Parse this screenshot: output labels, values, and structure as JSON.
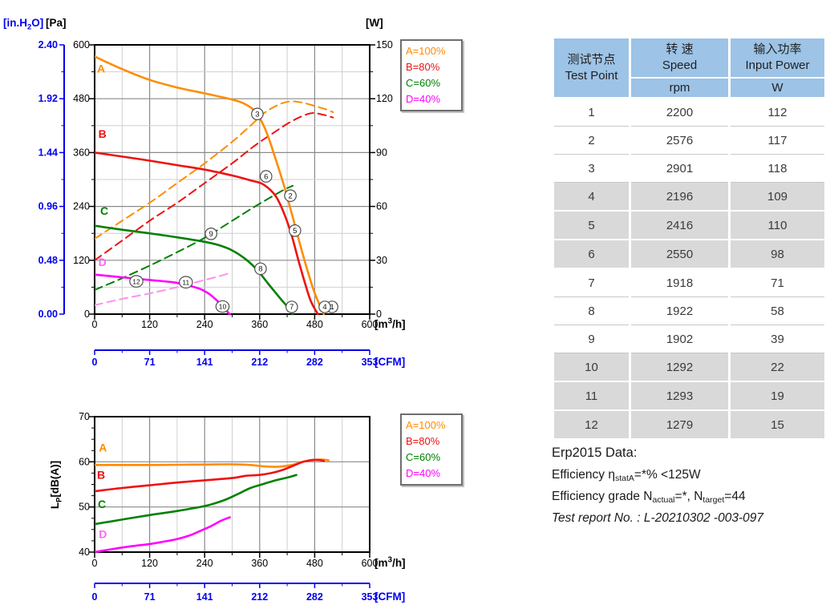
{
  "legend": {
    "items": [
      {
        "label": "A=100%",
        "color": "#FF8C00"
      },
      {
        "label": "B=80%",
        "color": "#EE1111"
      },
      {
        "label": "C=60%",
        "color": "#008000"
      },
      {
        "label": "D=40%",
        "color": "#FF00FF"
      }
    ]
  },
  "chart_data": [
    {
      "id": "pressure-power-chart",
      "type": "line",
      "x_axis": {
        "unit_parts": [
          {
            "t": "[m"
          },
          {
            "t": "3",
            "sup": true
          },
          {
            "t": "/h]"
          }
        ],
        "range": [
          0,
          600
        ],
        "major_ticks": [
          0,
          120,
          240,
          360,
          480,
          600
        ],
        "minor_step": 60
      },
      "x_axis_secondary": {
        "unit_label": "[CFM]",
        "major_ticks": [
          "0",
          "71",
          "141",
          "212",
          "282",
          "353"
        ],
        "color": "#0000EE"
      },
      "y_axis_left": {
        "unit_label": "[Pa]",
        "range": [
          0,
          600
        ],
        "major_ticks": [
          0,
          120,
          240,
          360,
          480,
          600
        ],
        "minor_step": 60
      },
      "y_axis_left_secondary": {
        "unit_parts": [
          {
            "t": "[in.H"
          },
          {
            "t": "2",
            "sub": true
          },
          {
            "t": "O]"
          }
        ],
        "major_tick_labels": [
          "0.00",
          "0.48",
          "0.96",
          "1.44",
          "1.92",
          "2.40"
        ],
        "color": "#0000EE"
      },
      "y_axis_right": {
        "unit_label": "[W]",
        "range": [
          0,
          150
        ],
        "major_ticks": [
          0,
          30,
          60,
          90,
          120,
          150
        ],
        "minor_step": 15
      },
      "series": [
        {
          "name": "A-100-pressure",
          "axis": "left",
          "style": "solid",
          "color": "#FF8C00",
          "points": [
            [
              0,
              574
            ],
            [
              60,
              546
            ],
            [
              120,
              522
            ],
            [
              180,
              505
            ],
            [
              240,
              492
            ],
            [
              300,
              478
            ],
            [
              330,
              467
            ],
            [
              354,
              447
            ],
            [
              375,
              405
            ],
            [
              395,
              345
            ],
            [
              415,
              280
            ],
            [
              435,
              205
            ],
            [
              455,
              130
            ],
            [
              475,
              62
            ],
            [
              490,
              22
            ],
            [
              500,
              0
            ]
          ]
        },
        {
          "name": "B-80-pressure",
          "axis": "left",
          "style": "solid",
          "color": "#EE1111",
          "points": [
            [
              0,
              360
            ],
            [
              60,
              351
            ],
            [
              120,
              342
            ],
            [
              180,
              332
            ],
            [
              240,
              322
            ],
            [
              300,
              309
            ],
            [
              340,
              298
            ],
            [
              368,
              289
            ],
            [
              395,
              263
            ],
            [
              415,
              220
            ],
            [
              430,
              175
            ],
            [
              445,
              118
            ],
            [
              460,
              65
            ],
            [
              472,
              28
            ],
            [
              487,
              0
            ]
          ]
        },
        {
          "name": "C-60-pressure",
          "axis": "left",
          "style": "solid",
          "color": "#008000",
          "points": [
            [
              0,
              197
            ],
            [
              60,
              188
            ],
            [
              120,
              180
            ],
            [
              180,
              171
            ],
            [
              240,
              161
            ],
            [
              270,
              154
            ],
            [
              300,
              142
            ],
            [
              330,
              122
            ],
            [
              355,
              98
            ],
            [
              380,
              66
            ],
            [
              405,
              35
            ],
            [
              420,
              17
            ],
            [
              432,
              0
            ]
          ]
        },
        {
          "name": "D-40-pressure",
          "axis": "left",
          "style": "solid",
          "color": "#FF00FF",
          "points": [
            [
              0,
              88
            ],
            [
              60,
              82
            ],
            [
              120,
              76
            ],
            [
              170,
              71
            ],
            [
              200,
              65
            ],
            [
              230,
              56
            ],
            [
              250,
              45
            ],
            [
              265,
              32
            ],
            [
              280,
              16
            ],
            [
              290,
              5
            ],
            [
              295,
              0
            ]
          ]
        },
        {
          "name": "A-100-power",
          "axis": "right",
          "style": "dashed",
          "color": "#FF8C00",
          "points": [
            [
              0,
              42
            ],
            [
              60,
              52
            ],
            [
              120,
              62
            ],
            [
              180,
              73
            ],
            [
              240,
              84
            ],
            [
              300,
              96
            ],
            [
              340,
              105
            ],
            [
              370,
              112
            ],
            [
              400,
              116.5
            ],
            [
              425,
              118.5
            ],
            [
              450,
              118
            ],
            [
              480,
              116
            ],
            [
              505,
              114
            ],
            [
              520,
              112.5
            ]
          ]
        },
        {
          "name": "B-80-power",
          "axis": "right",
          "style": "dashed",
          "color": "#EE1111",
          "points": [
            [
              0,
              30
            ],
            [
              60,
              41
            ],
            [
              120,
              52
            ],
            [
              180,
              62
            ],
            [
              240,
              73
            ],
            [
              300,
              84
            ],
            [
              350,
              94
            ],
            [
              390,
              101
            ],
            [
              420,
              106
            ],
            [
              450,
              110
            ],
            [
              475,
              112
            ],
            [
              500,
              111
            ],
            [
              520,
              109.5
            ]
          ]
        },
        {
          "name": "C-60-power",
          "axis": "right",
          "style": "dashed",
          "color": "#008000",
          "points": [
            [
              0,
              13.5
            ],
            [
              60,
              20
            ],
            [
              120,
              27
            ],
            [
              180,
              34.5
            ],
            [
              240,
              42.5
            ],
            [
              300,
              52
            ],
            [
              350,
              60
            ],
            [
              390,
              66
            ],
            [
              415,
              69.5
            ],
            [
              432,
              71.5
            ]
          ]
        },
        {
          "name": "D-40-power",
          "axis": "right",
          "style": "dashed",
          "color": "#FB93EC",
          "points": [
            [
              0,
              5
            ],
            [
              60,
              8.5
            ],
            [
              120,
              11.5
            ],
            [
              180,
              15
            ],
            [
              240,
              19
            ],
            [
              270,
              21
            ],
            [
              290,
              22.5
            ]
          ]
        }
      ],
      "curve_labels": [
        {
          "text": "A",
          "x": 14,
          "y": 538,
          "color": "#FF8C00"
        },
        {
          "text": "B",
          "x": 17,
          "y": 393,
          "color": "#EE1111"
        },
        {
          "text": "C",
          "x": 21,
          "y": 221,
          "color": "#008000"
        },
        {
          "text": "D",
          "x": 17,
          "y": 107,
          "color": "#FF66F5"
        }
      ],
      "test_point_markers": [
        {
          "n": "1",
          "x": 518,
          "y": 16
        },
        {
          "n": "2",
          "x": 427,
          "y": 264
        },
        {
          "n": "3",
          "x": 355,
          "y": 446
        },
        {
          "n": "4",
          "x": 502,
          "y": 16
        },
        {
          "n": "5",
          "x": 437,
          "y": 186
        },
        {
          "n": "6",
          "x": 374,
          "y": 307
        },
        {
          "n": "7",
          "x": 430,
          "y": 16
        },
        {
          "n": "8",
          "x": 362,
          "y": 101
        },
        {
          "n": "9",
          "x": 254,
          "y": 179
        },
        {
          "n": "10",
          "x": 279,
          "y": 17
        },
        {
          "n": "11",
          "x": 199,
          "y": 71
        },
        {
          "n": "12",
          "x": 91,
          "y": 73
        }
      ]
    },
    {
      "id": "noise-chart",
      "type": "line",
      "x_axis": {
        "unit_parts": [
          {
            "t": "[m"
          },
          {
            "t": "3",
            "sup": true
          },
          {
            "t": "/h]"
          }
        ],
        "range": [
          0,
          600
        ],
        "major_ticks": [
          0,
          120,
          240,
          360,
          480,
          600
        ],
        "minor_step": 60
      },
      "x_axis_secondary": {
        "unit_label": "[CFM]",
        "major_ticks": [
          "0",
          "71",
          "141",
          "212",
          "282",
          "353"
        ],
        "color": "#0000EE"
      },
      "y_axis_left": {
        "unit_parts": [
          {
            "t": "L"
          },
          {
            "t": "P",
            "sub": true
          },
          {
            "t": "[dB(A)]"
          }
        ],
        "range": [
          40,
          70
        ],
        "major_ticks": [
          40,
          50,
          60,
          70
        ],
        "minor_step": 2.5,
        "grid_lines": [
          50,
          60
        ]
      },
      "series": [
        {
          "name": "A-100-noise",
          "axis": "left",
          "style": "solid",
          "color": "#FF8C00",
          "points": [
            [
              0,
              59.3
            ],
            [
              60,
              59.3
            ],
            [
              120,
              59.3
            ],
            [
              180,
              59.35
            ],
            [
              240,
              59.4
            ],
            [
              300,
              59.45
            ],
            [
              340,
              59.3
            ],
            [
              370,
              59.0
            ],
            [
              400,
              58.9
            ],
            [
              430,
              59.3
            ],
            [
              455,
              60.0
            ],
            [
              475,
              60.4
            ],
            [
              495,
              60.5
            ],
            [
              510,
              60.35
            ]
          ]
        },
        {
          "name": "B-80-noise",
          "axis": "left",
          "style": "solid",
          "color": "#EE1111",
          "points": [
            [
              0,
              53.5
            ],
            [
              60,
              54.2
            ],
            [
              120,
              54.8
            ],
            [
              180,
              55.4
            ],
            [
              240,
              55.9
            ],
            [
              300,
              56.4
            ],
            [
              330,
              56.9
            ],
            [
              360,
              57.1
            ],
            [
              385,
              57.5
            ],
            [
              410,
              58.2
            ],
            [
              435,
              59.2
            ],
            [
              455,
              60.0
            ],
            [
              475,
              60.4
            ],
            [
              490,
              60.4
            ],
            [
              500,
              60.2
            ]
          ]
        },
        {
          "name": "C-60-noise",
          "axis": "left",
          "style": "solid",
          "color": "#008000",
          "points": [
            [
              0,
              46.2
            ],
            [
              60,
              47.2
            ],
            [
              120,
              48.2
            ],
            [
              180,
              49.1
            ],
            [
              240,
              50.2
            ],
            [
              265,
              50.9
            ],
            [
              290,
              51.8
            ],
            [
              315,
              53.0
            ],
            [
              340,
              54.2
            ],
            [
              365,
              55.0
            ],
            [
              395,
              55.9
            ],
            [
              420,
              56.5
            ],
            [
              440,
              57.1
            ]
          ]
        },
        {
          "name": "D-40-noise",
          "axis": "left",
          "style": "solid",
          "color": "#FF00FF",
          "points": [
            [
              0,
              40
            ],
            [
              40,
              40.7
            ],
            [
              80,
              41.3
            ],
            [
              120,
              41.8
            ],
            [
              150,
              42.3
            ],
            [
              180,
              42.9
            ],
            [
              210,
              43.8
            ],
            [
              235,
              44.9
            ],
            [
              255,
              45.8
            ],
            [
              275,
              46.9
            ],
            [
              295,
              47.7
            ]
          ]
        }
      ],
      "curve_labels": [
        {
          "text": "A",
          "x": 18,
          "y": 62.3,
          "color": "#FF8C00"
        },
        {
          "text": "B",
          "x": 14,
          "y": 56.2,
          "color": "#EE1111"
        },
        {
          "text": "C",
          "x": 16,
          "y": 49.8,
          "color": "#008000"
        },
        {
          "text": "D",
          "x": 18,
          "y": 43.1,
          "color": "#FF66F5"
        }
      ],
      "test_point_markers": []
    }
  ],
  "table": {
    "header": {
      "col1_zh": "测试节点",
      "col1_en": "Test Point",
      "col2_zh": "转 速",
      "col2_en": "Speed",
      "col2_unit": "rpm",
      "col3_zh": "输入功率",
      "col3_en": "Input Power",
      "col3_unit": "W"
    },
    "header_bg": "#9DC3E6",
    "stripe_bg": "#D9D9D9",
    "rows": [
      {
        "point": "1",
        "speed": "2200",
        "power": "112",
        "shaded": false
      },
      {
        "point": "2",
        "speed": "2576",
        "power": "117",
        "shaded": false
      },
      {
        "point": "3",
        "speed": "2901",
        "power": "118",
        "shaded": false
      },
      {
        "point": "4",
        "speed": "2196",
        "power": "109",
        "shaded": true
      },
      {
        "point": "5",
        "speed": "2416",
        "power": "110",
        "shaded": true
      },
      {
        "point": "6",
        "speed": "2550",
        "power": "98",
        "shaded": true
      },
      {
        "point": "7",
        "speed": "1918",
        "power": "71",
        "shaded": false
      },
      {
        "point": "8",
        "speed": "1922",
        "power": "58",
        "shaded": false
      },
      {
        "point": "9",
        "speed": "1902",
        "power": "39",
        "shaded": false
      },
      {
        "point": "10",
        "speed": "1292",
        "power": "22",
        "shaded": true
      },
      {
        "point": "11",
        "speed": "1293",
        "power": "19",
        "shaded": true
      },
      {
        "point": "12",
        "speed": "1279",
        "power": "15",
        "shaded": true
      }
    ]
  },
  "erp": {
    "title": "Erp2015  Data:",
    "efficiency_line": [
      {
        "text": "Efficiency η"
      },
      {
        "text": "statA",
        "sub": true
      },
      {
        "text": "=*% <125W"
      }
    ],
    "grade_line": [
      {
        "text": "Efficiency grade N"
      },
      {
        "text": "actual",
        "sub": true
      },
      {
        "text": "=*, N"
      },
      {
        "text": "target",
        "sub": true
      },
      {
        "text": "=44"
      }
    ],
    "report": "Test report No. : L-20210302 -003-097"
  }
}
